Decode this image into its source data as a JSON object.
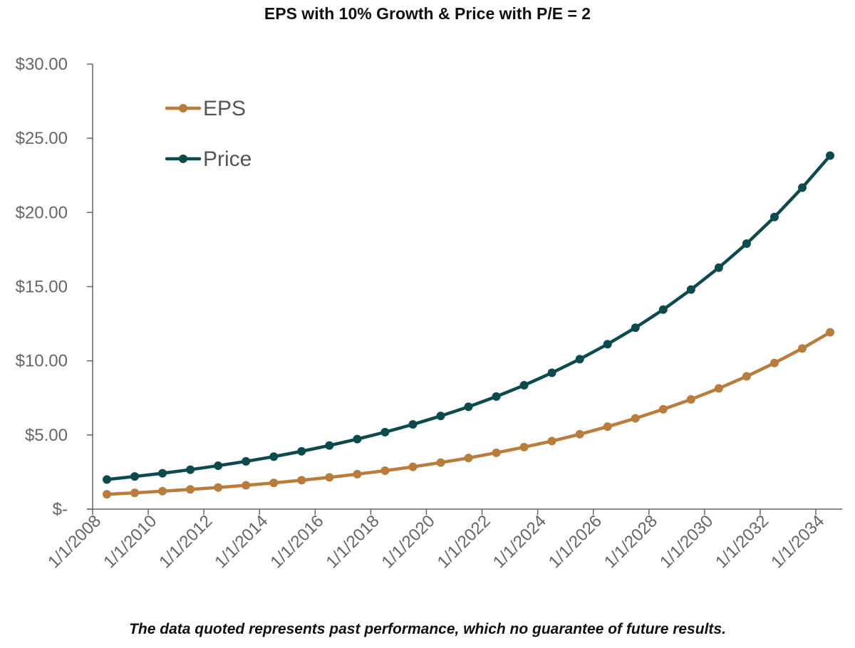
{
  "title": "EPS with 10% Growth & Price with P/E = 2",
  "footnote": "The data quoted represents past performance, which no guarantee of future results.",
  "colors": {
    "eps": "#B87C3C",
    "price": "#0D4A4E",
    "axis": "#666666",
    "text": "#666666"
  },
  "chart_data": {
    "type": "line",
    "title": "EPS with 10% Growth & Price with P/E = 2",
    "xlabel": "",
    "ylabel": "",
    "ylim": [
      0,
      30
    ],
    "y_ticks": [
      {
        "value": 0,
        "label": "$-"
      },
      {
        "value": 5,
        "label": "$5.00"
      },
      {
        "value": 10,
        "label": "$10.00"
      },
      {
        "value": 15,
        "label": "$15.00"
      },
      {
        "value": 20,
        "label": "$20.00"
      },
      {
        "value": 25,
        "label": "$25.00"
      },
      {
        "value": 30,
        "label": "$30.00"
      }
    ],
    "x_tick_labels": [
      "1/1/2008",
      "1/1/2010",
      "1/1/2012",
      "1/1/2014",
      "1/1/2016",
      "1/1/2018",
      "1/1/2020",
      "1/1/2022",
      "1/1/2024",
      "1/1/2026",
      "1/1/2028",
      "1/1/2030",
      "1/1/2032",
      "1/1/2034"
    ],
    "x": [
      "1/1/2008",
      "1/1/2009",
      "1/1/2010",
      "1/1/2011",
      "1/1/2012",
      "1/1/2013",
      "1/1/2014",
      "1/1/2015",
      "1/1/2016",
      "1/1/2017",
      "1/1/2018",
      "1/1/2019",
      "1/1/2020",
      "1/1/2021",
      "1/1/2022",
      "1/1/2023",
      "1/1/2024",
      "1/1/2025",
      "1/1/2026",
      "1/1/2027",
      "1/1/2028",
      "1/1/2029",
      "1/1/2030",
      "1/1/2031",
      "1/1/2032",
      "1/1/2033",
      "1/1/2034"
    ],
    "series": [
      {
        "name": "EPS",
        "color": "#B87C3C",
        "values": [
          1.0,
          1.1,
          1.21,
          1.33,
          1.46,
          1.61,
          1.77,
          1.95,
          2.14,
          2.36,
          2.59,
          2.85,
          3.14,
          3.45,
          3.8,
          4.18,
          4.59,
          5.05,
          5.56,
          6.12,
          6.73,
          7.4,
          8.14,
          8.95,
          9.85,
          10.83,
          11.92
        ]
      },
      {
        "name": "Price",
        "color": "#0D4A4E",
        "values": [
          2.0,
          2.2,
          2.42,
          2.66,
          2.93,
          3.22,
          3.54,
          3.9,
          4.29,
          4.72,
          5.19,
          5.71,
          6.28,
          6.9,
          7.59,
          8.35,
          9.19,
          10.11,
          11.12,
          12.23,
          13.45,
          14.8,
          16.28,
          17.9,
          19.69,
          21.67,
          23.83
        ]
      }
    ],
    "grid": false,
    "legend": "top-left"
  }
}
